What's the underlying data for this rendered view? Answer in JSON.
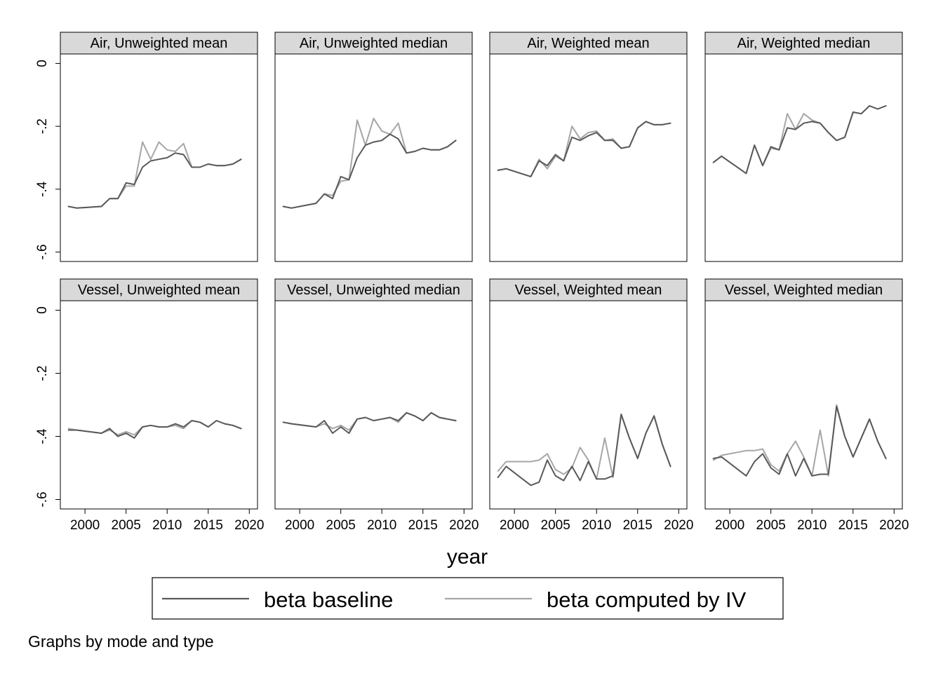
{
  "chart_data": {
    "type": "line",
    "layout": "small-multiples 2x4",
    "xlabel": "year",
    "ylabel": "",
    "xlim": [
      1997,
      2021
    ],
    "ylim": [
      -0.63,
      0.03
    ],
    "xticks": [
      2000,
      2005,
      2010,
      2015,
      2020
    ],
    "yticks": [
      0,
      -0.2,
      -0.4,
      -0.6
    ],
    "ytick_labels": [
      "0",
      "-.2",
      "-.4",
      "-.6"
    ],
    "grid": false,
    "legend": {
      "position": "bottom",
      "entries": [
        {
          "name": "beta baseline",
          "color": "#595959"
        },
        {
          "name": "beta computed by IV",
          "color": "#a6a6a6"
        }
      ]
    },
    "note": "Graphs by mode and type",
    "panels": [
      {
        "title": "Air, Unweighted mean",
        "series": [
          {
            "name": "beta baseline",
            "x": [
              1998,
              1999,
              2002,
              2003,
              2004,
              2005,
              2006,
              2007,
              2008,
              2009,
              2010,
              2011,
              2012,
              2013,
              2014,
              2015,
              2016,
              2017,
              2018,
              2019
            ],
            "y": [
              -0.455,
              -0.46,
              -0.455,
              -0.43,
              -0.43,
              -0.38,
              -0.385,
              -0.33,
              -0.31,
              -0.305,
              -0.3,
              -0.285,
              -0.29,
              -0.33,
              -0.33,
              -0.32,
              -0.325,
              -0.325,
              -0.32,
              -0.305
            ]
          },
          {
            "name": "beta computed by IV",
            "x": [
              1998,
              1999,
              2002,
              2003,
              2004,
              2005,
              2006,
              2007,
              2008,
              2009,
              2010,
              2011,
              2012,
              2013,
              2014,
              2015,
              2016,
              2017,
              2018,
              2019
            ],
            "y": [
              -0.455,
              -0.46,
              -0.455,
              -0.43,
              -0.43,
              -0.39,
              -0.39,
              -0.25,
              -0.305,
              -0.25,
              -0.275,
              -0.28,
              -0.255,
              -0.33,
              -0.33,
              -0.32,
              -0.325,
              -0.325,
              -0.32,
              -0.305
            ]
          }
        ]
      },
      {
        "title": "Air, Unweighted median",
        "series": [
          {
            "name": "beta baseline",
            "x": [
              1998,
              1999,
              2002,
              2003,
              2004,
              2005,
              2006,
              2007,
              2008,
              2009,
              2010,
              2011,
              2012,
              2013,
              2014,
              2015,
              2016,
              2017,
              2018,
              2019
            ],
            "y": [
              -0.455,
              -0.46,
              -0.445,
              -0.415,
              -0.43,
              -0.36,
              -0.37,
              -0.3,
              -0.26,
              -0.25,
              -0.245,
              -0.225,
              -0.24,
              -0.285,
              -0.28,
              -0.27,
              -0.275,
              -0.275,
              -0.265,
              -0.245
            ]
          },
          {
            "name": "beta computed by IV",
            "x": [
              1998,
              1999,
              2002,
              2003,
              2004,
              2005,
              2006,
              2007,
              2008,
              2009,
              2010,
              2011,
              2012,
              2013,
              2014,
              2015,
              2016,
              2017,
              2018,
              2019
            ],
            "y": [
              -0.455,
              -0.46,
              -0.445,
              -0.415,
              -0.42,
              -0.375,
              -0.37,
              -0.18,
              -0.26,
              -0.175,
              -0.215,
              -0.225,
              -0.19,
              -0.285,
              -0.28,
              -0.27,
              -0.275,
              -0.275,
              -0.265,
              -0.245
            ]
          }
        ]
      },
      {
        "title": "Air, Weighted mean",
        "series": [
          {
            "name": "beta baseline",
            "x": [
              1998,
              1999,
              2002,
              2003,
              2004,
              2005,
              2006,
              2007,
              2008,
              2009,
              2010,
              2011,
              2012,
              2013,
              2014,
              2015,
              2016,
              2017,
              2018,
              2019
            ],
            "y": [
              -0.34,
              -0.335,
              -0.36,
              -0.31,
              -0.325,
              -0.29,
              -0.31,
              -0.235,
              -0.245,
              -0.23,
              -0.22,
              -0.245,
              -0.245,
              -0.27,
              -0.265,
              -0.205,
              -0.185,
              -0.195,
              -0.195,
              -0.19
            ]
          },
          {
            "name": "beta computed by IV",
            "x": [
              1998,
              1999,
              2002,
              2003,
              2004,
              2005,
              2006,
              2007,
              2008,
              2009,
              2010,
              2011,
              2012,
              2013,
              2014,
              2015,
              2016,
              2017,
              2018,
              2019
            ],
            "y": [
              -0.34,
              -0.335,
              -0.36,
              -0.305,
              -0.335,
              -0.295,
              -0.31,
              -0.2,
              -0.24,
              -0.22,
              -0.215,
              -0.245,
              -0.24,
              -0.27,
              -0.265,
              -0.205,
              -0.185,
              -0.195,
              -0.195,
              -0.19
            ]
          }
        ]
      },
      {
        "title": "Air, Weighted median",
        "series": [
          {
            "name": "beta baseline",
            "x": [
              1998,
              1999,
              2002,
              2003,
              2004,
              2005,
              2006,
              2007,
              2008,
              2009,
              2010,
              2011,
              2012,
              2013,
              2014,
              2015,
              2016,
              2017,
              2018,
              2019
            ],
            "y": [
              -0.315,
              -0.295,
              -0.35,
              -0.26,
              -0.325,
              -0.265,
              -0.275,
              -0.205,
              -0.21,
              -0.19,
              -0.185,
              -0.19,
              -0.22,
              -0.245,
              -0.235,
              -0.155,
              -0.16,
              -0.135,
              -0.145,
              -0.135
            ]
          },
          {
            "name": "beta computed by IV",
            "x": [
              1998,
              1999,
              2002,
              2003,
              2004,
              2005,
              2006,
              2007,
              2008,
              2009,
              2010,
              2011,
              2012,
              2013,
              2014,
              2015,
              2016,
              2017,
              2018,
              2019
            ],
            "y": [
              -0.315,
              -0.295,
              -0.35,
              -0.26,
              -0.325,
              -0.27,
              -0.275,
              -0.16,
              -0.21,
              -0.16,
              -0.18,
              -0.19,
              -0.22,
              -0.245,
              -0.235,
              -0.155,
              -0.16,
              -0.135,
              -0.145,
              -0.135
            ]
          }
        ]
      },
      {
        "title": "Vessel, Unweighted mean",
        "series": [
          {
            "name": "beta baseline",
            "x": [
              1998,
              1999,
              2002,
              2003,
              2004,
              2005,
              2006,
              2007,
              2008,
              2009,
              2010,
              2011,
              2012,
              2013,
              2014,
              2015,
              2016,
              2017,
              2018,
              2019
            ],
            "y": [
              -0.38,
              -0.38,
              -0.39,
              -0.375,
              -0.4,
              -0.39,
              -0.405,
              -0.37,
              -0.365,
              -0.37,
              -0.37,
              -0.36,
              -0.37,
              -0.35,
              -0.355,
              -0.37,
              -0.35,
              -0.36,
              -0.365,
              -0.375
            ]
          },
          {
            "name": "beta computed by IV",
            "x": [
              1998,
              1999,
              2002,
              2003,
              2004,
              2005,
              2006,
              2007,
              2008,
              2009,
              2010,
              2011,
              2012,
              2013,
              2014,
              2015,
              2016,
              2017,
              2018,
              2019
            ],
            "y": [
              -0.375,
              -0.38,
              -0.39,
              -0.38,
              -0.395,
              -0.385,
              -0.395,
              -0.37,
              -0.365,
              -0.37,
              -0.37,
              -0.365,
              -0.375,
              -0.35,
              -0.355,
              -0.37,
              -0.35,
              -0.36,
              -0.365,
              -0.375
            ]
          }
        ]
      },
      {
        "title": "Vessel, Unweighted median",
        "series": [
          {
            "name": "beta baseline",
            "x": [
              1998,
              1999,
              2002,
              2003,
              2004,
              2005,
              2006,
              2007,
              2008,
              2009,
              2010,
              2011,
              2012,
              2013,
              2014,
              2015,
              2016,
              2017,
              2018,
              2019
            ],
            "y": [
              -0.355,
              -0.36,
              -0.37,
              -0.35,
              -0.39,
              -0.37,
              -0.39,
              -0.345,
              -0.34,
              -0.35,
              -0.345,
              -0.34,
              -0.35,
              -0.325,
              -0.335,
              -0.35,
              -0.325,
              -0.34,
              -0.345,
              -0.35
            ]
          },
          {
            "name": "beta computed by IV",
            "x": [
              1998,
              1999,
              2002,
              2003,
              2004,
              2005,
              2006,
              2007,
              2008,
              2009,
              2010,
              2011,
              2012,
              2013,
              2014,
              2015,
              2016,
              2017,
              2018,
              2019
            ],
            "y": [
              -0.355,
              -0.36,
              -0.37,
              -0.36,
              -0.375,
              -0.365,
              -0.38,
              -0.345,
              -0.34,
              -0.35,
              -0.345,
              -0.34,
              -0.355,
              -0.325,
              -0.335,
              -0.35,
              -0.325,
              -0.34,
              -0.345,
              -0.35
            ]
          }
        ]
      },
      {
        "title": "Vessel, Weighted mean",
        "series": [
          {
            "name": "beta baseline",
            "x": [
              1998,
              1999,
              2002,
              2003,
              2004,
              2005,
              2006,
              2007,
              2008,
              2009,
              2010,
              2011,
              2012,
              2013,
              2014,
              2015,
              2016,
              2017,
              2018,
              2019
            ],
            "y": [
              -0.53,
              -0.495,
              -0.555,
              -0.545,
              -0.475,
              -0.525,
              -0.54,
              -0.495,
              -0.54,
              -0.48,
              -0.535,
              -0.535,
              -0.525,
              -0.33,
              -0.405,
              -0.47,
              -0.39,
              -0.335,
              -0.425,
              -0.495
            ]
          },
          {
            "name": "beta computed by IV",
            "x": [
              1998,
              1999,
              2002,
              2003,
              2004,
              2005,
              2006,
              2007,
              2008,
              2009,
              2010,
              2011,
              2012,
              2013,
              2014,
              2015,
              2016,
              2017,
              2018,
              2019
            ],
            "y": [
              -0.51,
              -0.48,
              -0.48,
              -0.475,
              -0.455,
              -0.505,
              -0.52,
              -0.5,
              -0.435,
              -0.475,
              -0.535,
              -0.405,
              -0.53,
              -0.33,
              -0.405,
              -0.47,
              -0.39,
              -0.335,
              -0.425,
              -0.495
            ]
          }
        ]
      },
      {
        "title": "Vessel, Weighted median",
        "series": [
          {
            "name": "beta baseline",
            "x": [
              1998,
              1999,
              2002,
              2003,
              2004,
              2005,
              2006,
              2007,
              2008,
              2009,
              2010,
              2011,
              2012,
              2013,
              2014,
              2015,
              2016,
              2017,
              2018,
              2019
            ],
            "y": [
              -0.47,
              -0.465,
              -0.525,
              -0.48,
              -0.455,
              -0.5,
              -0.52,
              -0.455,
              -0.525,
              -0.47,
              -0.525,
              -0.52,
              -0.52,
              -0.305,
              -0.4,
              -0.465,
              -0.405,
              -0.345,
              -0.415,
              -0.47
            ]
          },
          {
            "name": "beta computed by IV",
            "x": [
              1998,
              1999,
              2002,
              2003,
              2004,
              2005,
              2006,
              2007,
              2008,
              2009,
              2010,
              2011,
              2012,
              2013,
              2014,
              2015,
              2016,
              2017,
              2018,
              2019
            ],
            "y": [
              -0.475,
              -0.46,
              -0.445,
              -0.445,
              -0.44,
              -0.49,
              -0.51,
              -0.455,
              -0.415,
              -0.465,
              -0.525,
              -0.38,
              -0.525,
              -0.3,
              -0.4,
              -0.465,
              -0.405,
              -0.345,
              -0.415,
              -0.47
            ]
          }
        ]
      }
    ]
  }
}
